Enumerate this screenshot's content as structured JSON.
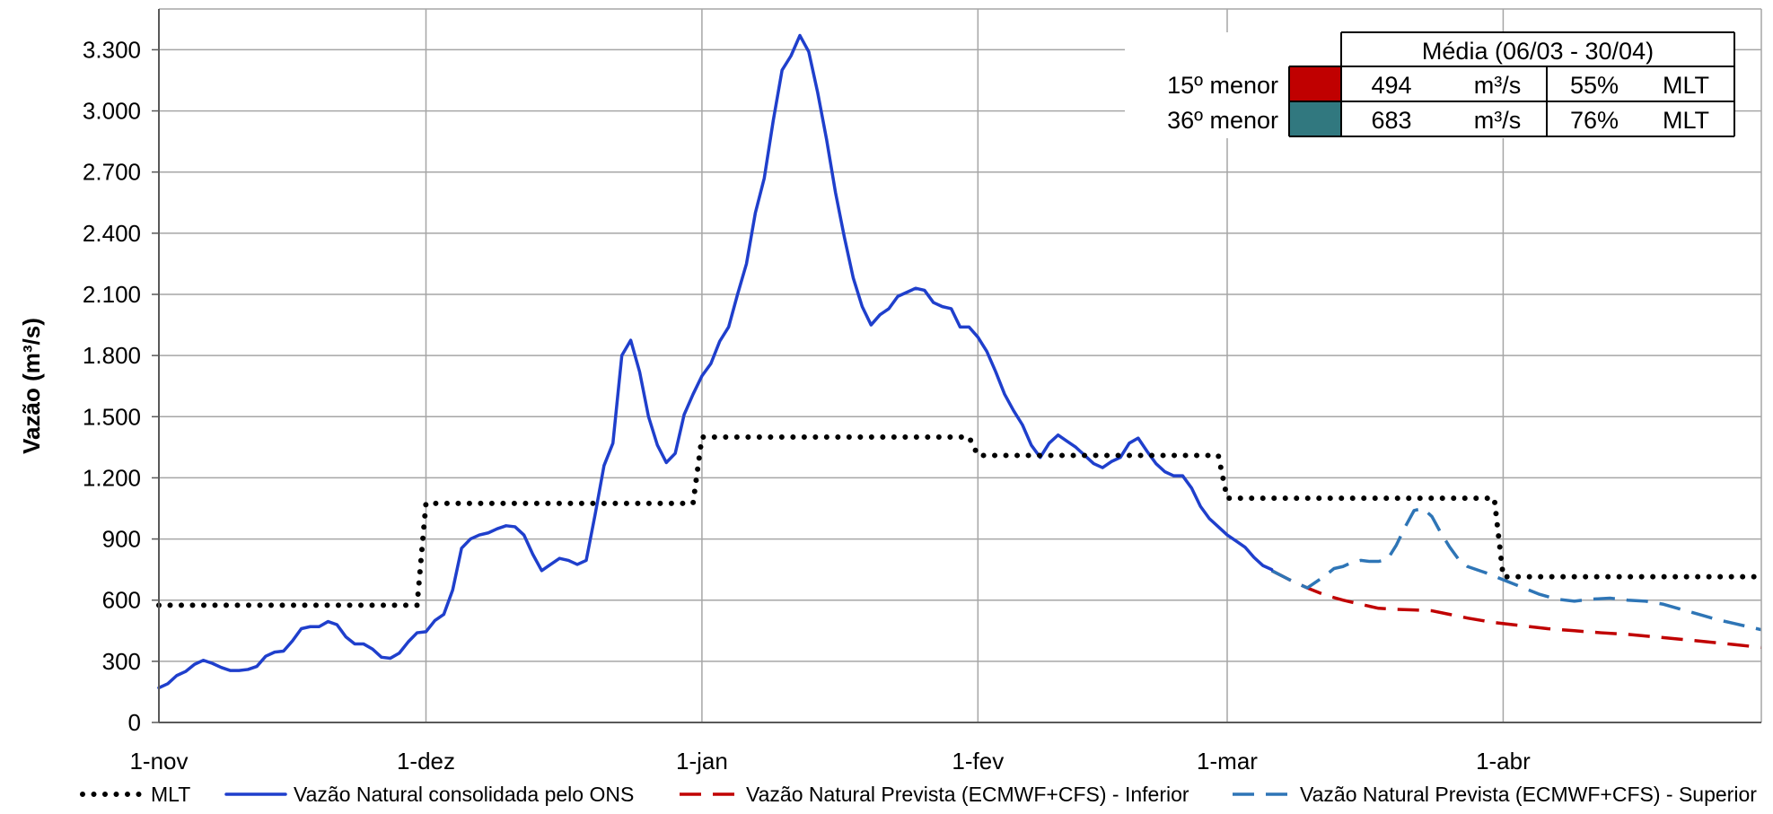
{
  "chart_data": {
    "type": "line",
    "title": "",
    "xlabel": "",
    "ylabel": "Vazão (m³/s)",
    "x_range": [
      "2024-11-01",
      "2025-04-30"
    ],
    "ylim": [
      0,
      3500
    ],
    "y_ticks": [
      {
        "value": 0,
        "label": "0"
      },
      {
        "value": 300,
        "label": "300"
      },
      {
        "value": 600,
        "label": "600"
      },
      {
        "value": 900,
        "label": "900"
      },
      {
        "value": 1200,
        "label": "1.200"
      },
      {
        "value": 1500,
        "label": "1.500"
      },
      {
        "value": 1800,
        "label": "1.800"
      },
      {
        "value": 2100,
        "label": "2.100"
      },
      {
        "value": 2400,
        "label": "2.400"
      },
      {
        "value": 2700,
        "label": "2.700"
      },
      {
        "value": 3000,
        "label": "3.000"
      },
      {
        "value": 3300,
        "label": "3.300"
      }
    ],
    "x_ticks": [
      {
        "date": "2024-11-01",
        "label": "1-nov"
      },
      {
        "date": "2024-12-01",
        "label": "1-dez"
      },
      {
        "date": "2025-01-01",
        "label": "1-jan"
      },
      {
        "date": "2025-02-01",
        "label": "1-fev"
      },
      {
        "date": "2025-03-01",
        "label": "1-mar"
      },
      {
        "date": "2025-04-01",
        "label": "1-abr"
      }
    ],
    "grid": true,
    "legend_position": "bottom",
    "series": [
      {
        "name": "MLT",
        "color": "#000000",
        "style": "dotted",
        "points": [
          [
            "2024-11-01",
            575
          ],
          [
            "2024-11-30",
            575
          ],
          [
            "2024-12-01",
            1075
          ],
          [
            "2024-12-31",
            1075
          ],
          [
            "2025-01-01",
            1400
          ],
          [
            "2025-01-31",
            1400
          ],
          [
            "2025-02-01",
            1310
          ],
          [
            "2025-02-28",
            1310
          ],
          [
            "2025-03-01",
            1100
          ],
          [
            "2025-03-31",
            1100
          ],
          [
            "2025-04-01",
            715
          ],
          [
            "2025-04-30",
            715
          ]
        ]
      },
      {
        "name": "Vazão Natural consolidada pelo ONS",
        "color": "#1f3fcc",
        "style": "solid",
        "points": [
          [
            "2024-11-01",
            170
          ],
          [
            "2024-11-02",
            190
          ],
          [
            "2024-11-03",
            230
          ],
          [
            "2024-11-04",
            250
          ],
          [
            "2024-11-05",
            285
          ],
          [
            "2024-11-06",
            305
          ],
          [
            "2024-11-07",
            290
          ],
          [
            "2024-11-08",
            270
          ],
          [
            "2024-11-09",
            255
          ],
          [
            "2024-11-10",
            255
          ],
          [
            "2024-11-11",
            260
          ],
          [
            "2024-11-12",
            275
          ],
          [
            "2024-11-13",
            325
          ],
          [
            "2024-11-14",
            345
          ],
          [
            "2024-11-15",
            350
          ],
          [
            "2024-11-16",
            400
          ],
          [
            "2024-11-17",
            460
          ],
          [
            "2024-11-18",
            470
          ],
          [
            "2024-11-19",
            470
          ],
          [
            "2024-11-20",
            495
          ],
          [
            "2024-11-21",
            480
          ],
          [
            "2024-11-22",
            420
          ],
          [
            "2024-11-23",
            385
          ],
          [
            "2024-11-24",
            385
          ],
          [
            "2024-11-25",
            360
          ],
          [
            "2024-11-26",
            320
          ],
          [
            "2024-11-27",
            315
          ],
          [
            "2024-11-28",
            340
          ],
          [
            "2024-11-29",
            395
          ],
          [
            "2024-11-30",
            440
          ],
          [
            "2024-12-01",
            445
          ],
          [
            "2024-12-02",
            500
          ],
          [
            "2024-12-03",
            530
          ],
          [
            "2024-12-04",
            650
          ],
          [
            "2024-12-05",
            855
          ],
          [
            "2024-12-06",
            900
          ],
          [
            "2024-12-07",
            920
          ],
          [
            "2024-12-08",
            930
          ],
          [
            "2024-12-09",
            950
          ],
          [
            "2024-12-10",
            965
          ],
          [
            "2024-12-11",
            960
          ],
          [
            "2024-12-12",
            920
          ],
          [
            "2024-12-13",
            825
          ],
          [
            "2024-12-14",
            745
          ],
          [
            "2024-12-15",
            775
          ],
          [
            "2024-12-16",
            805
          ],
          [
            "2024-12-17",
            795
          ],
          [
            "2024-12-18",
            775
          ],
          [
            "2024-12-19",
            795
          ],
          [
            "2024-12-20",
            1020
          ],
          [
            "2024-12-21",
            1260
          ],
          [
            "2024-12-22",
            1370
          ],
          [
            "2024-12-23",
            1800
          ],
          [
            "2024-12-24",
            1875
          ],
          [
            "2024-12-25",
            1720
          ],
          [
            "2024-12-26",
            1500
          ],
          [
            "2024-12-27",
            1360
          ],
          [
            "2024-12-28",
            1275
          ],
          [
            "2024-12-29",
            1320
          ],
          [
            "2024-12-30",
            1510
          ],
          [
            "2024-12-31",
            1610
          ],
          [
            "2025-01-01",
            1700
          ],
          [
            "2025-01-02",
            1760
          ],
          [
            "2025-01-03",
            1870
          ],
          [
            "2025-01-04",
            1940
          ],
          [
            "2025-01-05",
            2100
          ],
          [
            "2025-01-06",
            2250
          ],
          [
            "2025-01-07",
            2500
          ],
          [
            "2025-01-08",
            2670
          ],
          [
            "2025-01-09",
            2950
          ],
          [
            "2025-01-10",
            3200
          ],
          [
            "2025-01-11",
            3270
          ],
          [
            "2025-01-12",
            3370
          ],
          [
            "2025-01-13",
            3290
          ],
          [
            "2025-01-14",
            3090
          ],
          [
            "2025-01-15",
            2860
          ],
          [
            "2025-01-16",
            2600
          ],
          [
            "2025-01-17",
            2380
          ],
          [
            "2025-01-18",
            2180
          ],
          [
            "2025-01-19",
            2040
          ],
          [
            "2025-01-20",
            1950
          ],
          [
            "2025-01-21",
            2000
          ],
          [
            "2025-01-22",
            2030
          ],
          [
            "2025-01-23",
            2090
          ],
          [
            "2025-01-24",
            2110
          ],
          [
            "2025-01-25",
            2130
          ],
          [
            "2025-01-26",
            2120
          ],
          [
            "2025-01-27",
            2060
          ],
          [
            "2025-01-28",
            2040
          ],
          [
            "2025-01-29",
            2030
          ],
          [
            "2025-01-30",
            1940
          ],
          [
            "2025-01-31",
            1940
          ],
          [
            "2025-02-01",
            1890
          ],
          [
            "2025-02-02",
            1820
          ],
          [
            "2025-02-03",
            1720
          ],
          [
            "2025-02-04",
            1610
          ],
          [
            "2025-02-05",
            1530
          ],
          [
            "2025-02-06",
            1460
          ],
          [
            "2025-02-07",
            1360
          ],
          [
            "2025-02-08",
            1300
          ],
          [
            "2025-02-09",
            1370
          ],
          [
            "2025-02-10",
            1410
          ],
          [
            "2025-02-11",
            1380
          ],
          [
            "2025-02-12",
            1350
          ],
          [
            "2025-02-13",
            1310
          ],
          [
            "2025-02-14",
            1270
          ],
          [
            "2025-02-15",
            1250
          ],
          [
            "2025-02-16",
            1280
          ],
          [
            "2025-02-17",
            1300
          ],
          [
            "2025-02-18",
            1370
          ],
          [
            "2025-02-19",
            1395
          ],
          [
            "2025-02-20",
            1330
          ],
          [
            "2025-02-21",
            1270
          ],
          [
            "2025-02-22",
            1230
          ],
          [
            "2025-02-23",
            1210
          ],
          [
            "2025-02-24",
            1210
          ],
          [
            "2025-02-25",
            1150
          ],
          [
            "2025-02-26",
            1060
          ],
          [
            "2025-02-27",
            1000
          ],
          [
            "2025-02-28",
            960
          ],
          [
            "2025-03-01",
            920
          ],
          [
            "2025-03-02",
            890
          ],
          [
            "2025-03-03",
            860
          ],
          [
            "2025-03-04",
            810
          ],
          [
            "2025-03-05",
            770
          ],
          [
            "2025-03-06",
            750
          ]
        ]
      },
      {
        "name": "Vazão Natural Prevista (ECMWF+CFS) - Inferior",
        "color": "#c00000",
        "style": "dashed",
        "points": [
          [
            "2025-03-06",
            745
          ],
          [
            "2025-03-08",
            700
          ],
          [
            "2025-03-10",
            660
          ],
          [
            "2025-03-12",
            625
          ],
          [
            "2025-03-14",
            600
          ],
          [
            "2025-03-16",
            580
          ],
          [
            "2025-03-18",
            560
          ],
          [
            "2025-03-20",
            555
          ],
          [
            "2025-03-22",
            552
          ],
          [
            "2025-03-24",
            548
          ],
          [
            "2025-03-26",
            530
          ],
          [
            "2025-03-28",
            512
          ],
          [
            "2025-03-31",
            490
          ],
          [
            "2025-04-03",
            475
          ],
          [
            "2025-04-06",
            460
          ],
          [
            "2025-04-09",
            450
          ],
          [
            "2025-04-12",
            440
          ],
          [
            "2025-04-15",
            432
          ],
          [
            "2025-04-18",
            420
          ],
          [
            "2025-04-21",
            408
          ],
          [
            "2025-04-24",
            395
          ],
          [
            "2025-04-27",
            382
          ],
          [
            "2025-04-30",
            368
          ]
        ]
      },
      {
        "name": "Vazão Natural Prevista (ECMWF+CFS) - Superior",
        "color": "#2e75b6",
        "style": "dashed",
        "points": [
          [
            "2025-03-06",
            745
          ],
          [
            "2025-03-08",
            700
          ],
          [
            "2025-03-10",
            660
          ],
          [
            "2025-03-11",
            690
          ],
          [
            "2025-03-12",
            720
          ],
          [
            "2025-03-13",
            755
          ],
          [
            "2025-03-14",
            765
          ],
          [
            "2025-03-15",
            785
          ],
          [
            "2025-03-16",
            795
          ],
          [
            "2025-03-17",
            790
          ],
          [
            "2025-03-18",
            790
          ],
          [
            "2025-03-19",
            800
          ],
          [
            "2025-03-20",
            870
          ],
          [
            "2025-03-21",
            960
          ],
          [
            "2025-03-22",
            1040
          ],
          [
            "2025-03-23",
            1050
          ],
          [
            "2025-03-24",
            1010
          ],
          [
            "2025-03-25",
            930
          ],
          [
            "2025-03-26",
            860
          ],
          [
            "2025-03-27",
            800
          ],
          [
            "2025-03-28",
            765
          ],
          [
            "2025-03-30",
            735
          ],
          [
            "2025-04-01",
            700
          ],
          [
            "2025-04-03",
            665
          ],
          [
            "2025-04-05",
            630
          ],
          [
            "2025-04-07",
            605
          ],
          [
            "2025-04-09",
            595
          ],
          [
            "2025-04-11",
            605
          ],
          [
            "2025-04-13",
            610
          ],
          [
            "2025-04-15",
            600
          ],
          [
            "2025-04-17",
            595
          ],
          [
            "2025-04-19",
            580
          ],
          [
            "2025-04-21",
            555
          ],
          [
            "2025-04-23",
            530
          ],
          [
            "2025-04-25",
            505
          ],
          [
            "2025-04-27",
            485
          ],
          [
            "2025-04-30",
            455
          ]
        ]
      }
    ],
    "info_table": {
      "header": "Média (06/03 - 30/04)",
      "rows": [
        {
          "label": "15º menor",
          "color": "#c00000",
          "value": "494",
          "unit": "m³/s",
          "percent": "55%",
          "ref": "MLT"
        },
        {
          "label": "36º menor",
          "color": "#31787f",
          "value": "683",
          "unit": "m³/s",
          "percent": "76%",
          "ref": "MLT"
        }
      ]
    }
  }
}
